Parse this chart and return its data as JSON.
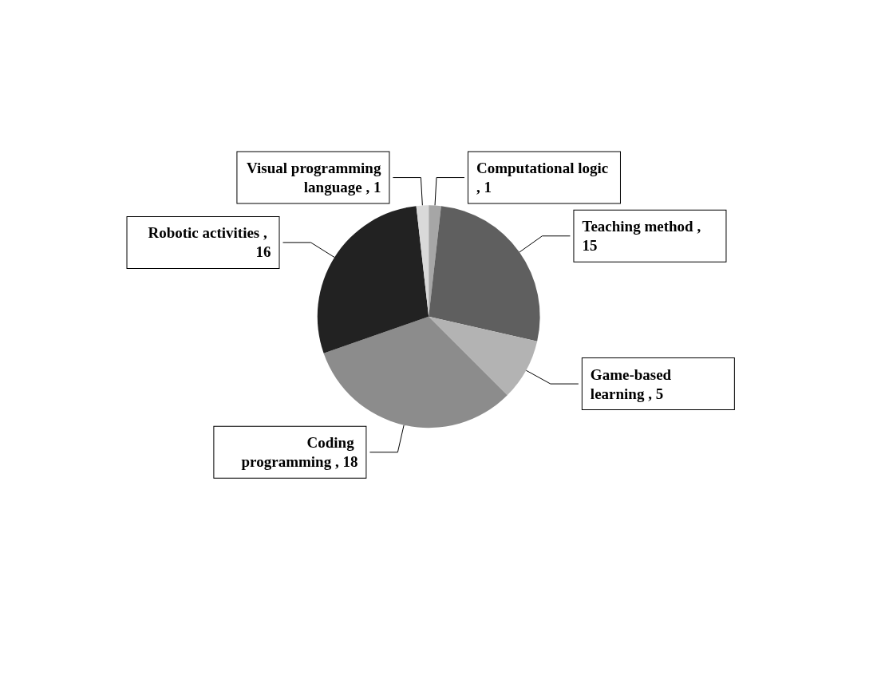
{
  "chart_data": {
    "type": "pie",
    "categories": [
      "Computational logic",
      "Teaching method",
      "Game-based learning",
      "Coding programming",
      "Robotic activities",
      "Visual programming language"
    ],
    "values": [
      1,
      15,
      5,
      18,
      16,
      1
    ],
    "value_labels": [
      ", 1",
      ", 15",
      ", 5",
      ", 18",
      ", 16",
      ", 1"
    ],
    "colors": [
      "#a6a6a6",
      "#5f5f5f",
      "#b3b3b3",
      "#8c8c8c",
      "#222222",
      "#d9d9d9"
    ],
    "data_labels": true,
    "legend": false
  }
}
